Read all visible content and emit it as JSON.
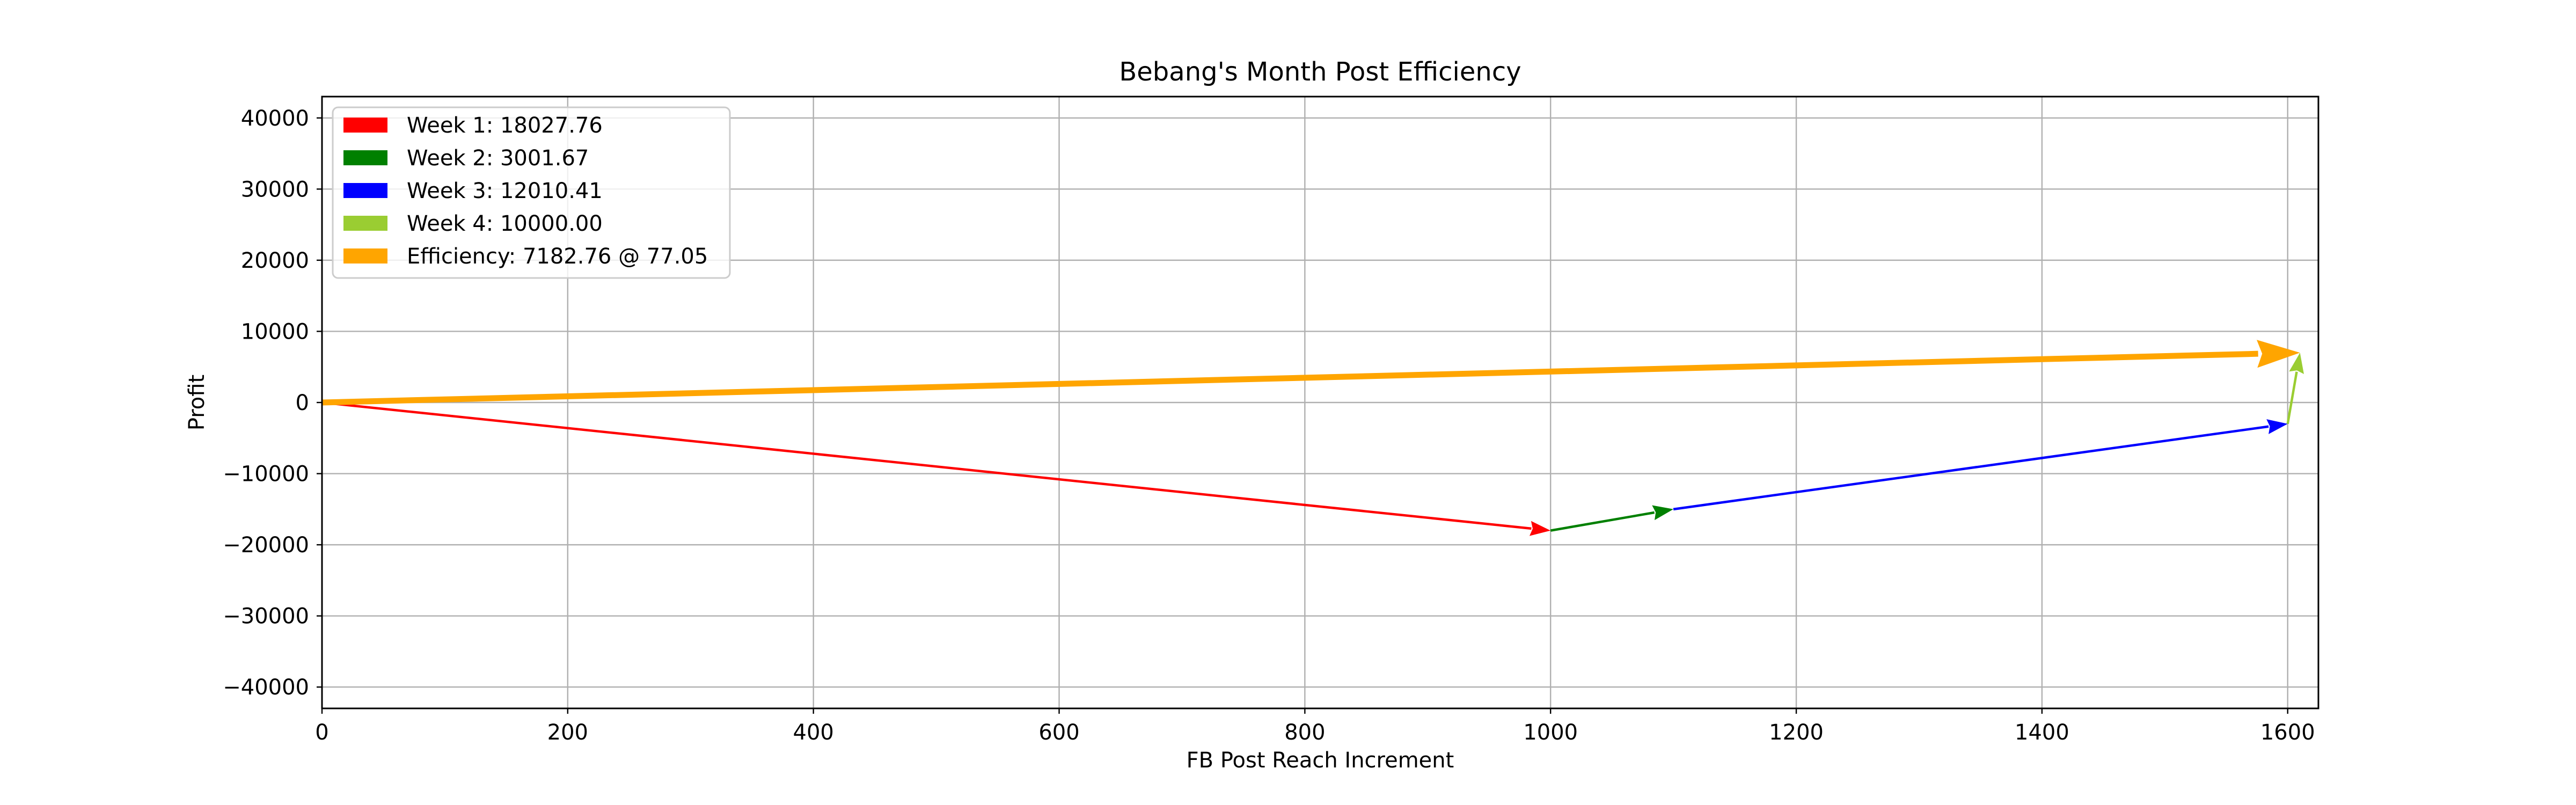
{
  "chart_data": {
    "type": "quiver",
    "title": "Bebang's Month Post Efficiency",
    "xlabel": "FB Post Reach Increment",
    "ylabel": "Profit",
    "xlim": [
      0,
      1625
    ],
    "ylim": [
      -43000,
      43000
    ],
    "xticks": [
      0,
      200,
      400,
      600,
      800,
      1000,
      1200,
      1400,
      1600
    ],
    "yticks": [
      -40000,
      -30000,
      -20000,
      -10000,
      0,
      10000,
      20000,
      30000,
      40000
    ],
    "grid": true,
    "legend_position": "top-left",
    "vectors": [
      {
        "name": "Week 1: 18027.76",
        "x0": 0,
        "y0": 0,
        "dx": 1000,
        "dy": -18000,
        "color": "#ff0000",
        "width": "thin"
      },
      {
        "name": "Week 2: 3001.67",
        "x0": 1000,
        "y0": -18000,
        "dx": 100,
        "dy": 3000,
        "color": "#008000",
        "width": "thin"
      },
      {
        "name": "Week 3: 12010.41",
        "x0": 1100,
        "y0": -15000,
        "dx": 500,
        "dy": 12000,
        "color": "#0000ff",
        "width": "thin"
      },
      {
        "name": "Week 4: 10000.00",
        "x0": 1600,
        "y0": -3000,
        "dx": 10,
        "dy": 10000,
        "color": "#9acd32",
        "width": "thin"
      },
      {
        "name": "Efficiency: 7182.76 @ 77.05",
        "x0": 0,
        "y0": 0,
        "dx": 1610,
        "dy": 7000,
        "color": "#ffa500",
        "width": "thick"
      }
    ]
  }
}
